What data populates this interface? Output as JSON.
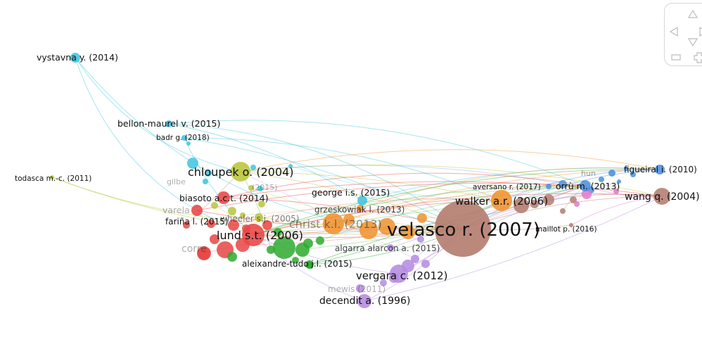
{
  "network": {
    "nodes": [
      {
        "id": "vystavna",
        "label": "vystavna y. (2014)",
        "cluster": "cyan"
      },
      {
        "id": "bellon",
        "label": "bellon-maurel v. (2015)",
        "cluster": "cyan"
      },
      {
        "id": "badr",
        "label": "badr g. (2018)",
        "cluster": "cyan"
      },
      {
        "id": "todasca",
        "label": "todasca m.-c. (2011)",
        "cluster": "yellow"
      },
      {
        "id": "chloupek",
        "label": "chloupek o. (2004)",
        "cluster": "yellow"
      },
      {
        "id": "biasoto",
        "label": "biasoto a.c.t. (2014)",
        "cluster": "red"
      },
      {
        "id": "farina",
        "label": "fariña l. (2015)",
        "cluster": "red"
      },
      {
        "id": "wheeler",
        "label": "wheeler s.j. (2005)",
        "cluster": "yellow"
      },
      {
        "id": "lund",
        "label": "lund s.t. (2006)",
        "cluster": "red"
      },
      {
        "id": "george",
        "label": "george i.s. (2015)",
        "cluster": "cyan"
      },
      {
        "id": "grzeskowiak",
        "label": "grzeskowiak l. (2013)",
        "cluster": "orange"
      },
      {
        "id": "christ",
        "label": "christ k.l. (2013)",
        "cluster": "orange"
      },
      {
        "id": "algarra",
        "label": "algarra alarcon a. (2015)",
        "cluster": "purple"
      },
      {
        "id": "aleixandre",
        "label": "aleixandre-tudo j.l. (2015)",
        "cluster": "green"
      },
      {
        "id": "vergara",
        "label": "vergara c. (2012)",
        "cluster": "purple"
      },
      {
        "id": "mewis",
        "label": "mewis (2011)",
        "cluster": "purple"
      },
      {
        "id": "decendit",
        "label": "decendit a. (1996)",
        "cluster": "purple"
      },
      {
        "id": "velasco",
        "label": "velasco r. (2007)",
        "cluster": "brown"
      },
      {
        "id": "walker",
        "label": "walker a.r. (2006)",
        "cluster": "orange"
      },
      {
        "id": "aversano",
        "label": "aversano r. (2017)",
        "cluster": "brown"
      },
      {
        "id": "orru",
        "label": "orrù m. (2013)",
        "cluster": "blue"
      },
      {
        "id": "maillot",
        "label": "maillot p. (2016)",
        "cluster": "brown"
      },
      {
        "id": "figueiral",
        "label": "figueiral i. (2010)",
        "cluster": "blue"
      },
      {
        "id": "wang",
        "label": "wang q. (2004)",
        "cluster": "brown"
      },
      {
        "id": "varela",
        "label": "varela",
        "cluster": "red"
      },
      {
        "id": "correia",
        "label": "corre",
        "cluster": "red"
      },
      {
        "id": "gilbert",
        "label": "gilbe",
        "cluster": "cyan"
      },
      {
        "id": "pozo",
        "label": "(2015)",
        "cluster": "cyan"
      },
      {
        "id": "hunter",
        "label": "hun",
        "cluster": "blue"
      }
    ]
  },
  "colors": {
    "red": "#e84545",
    "green": "#2eaa2e",
    "blue": "#4a8fe0",
    "yellow": "#b9c53a",
    "purple": "#b48be0",
    "cyan": "#3dc5de",
    "orange": "#f0922e",
    "brown": "#b47c6e",
    "pink": "#e07ac8"
  },
  "navigation": {
    "icons": [
      "arrow-up-icon",
      "arrow-left-icon",
      "arrow-down-icon",
      "arrow-right-icon",
      "zoom-out-icon",
      "zoom-in-icon"
    ]
  }
}
